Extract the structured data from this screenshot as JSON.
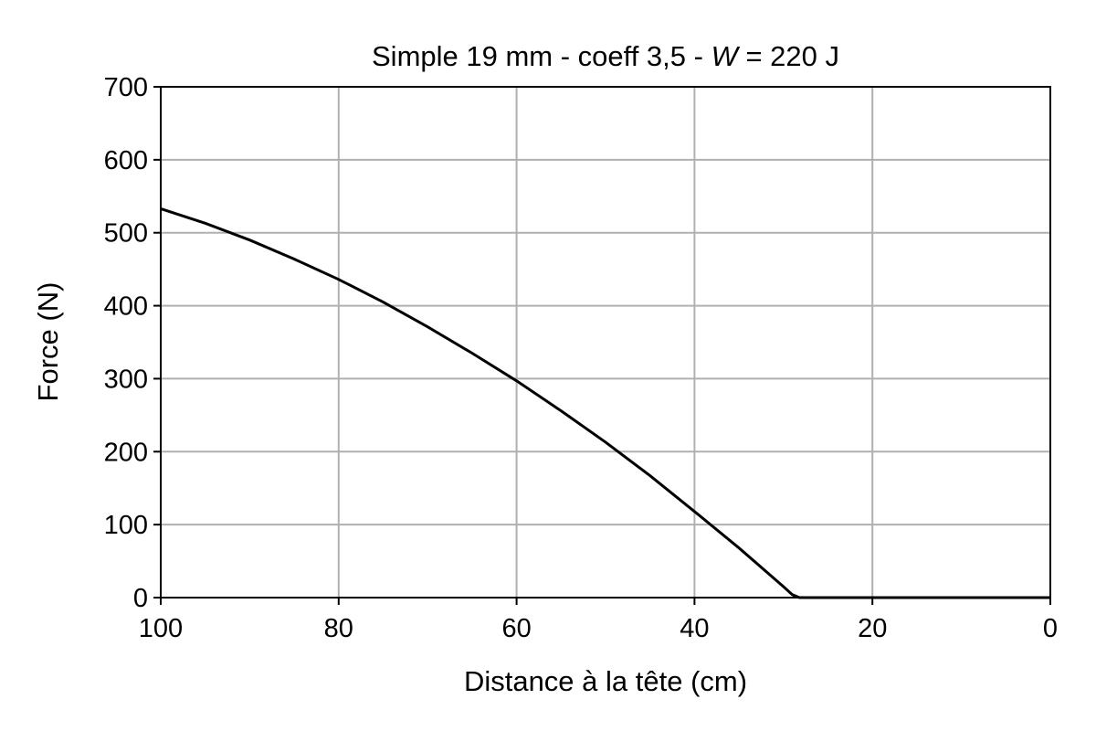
{
  "chart_data": {
    "type": "line",
    "title_parts": {
      "prefix": "Simple 19 mm - coeff 3,5 - ",
      "variable": "W",
      "suffix": " = 220 J"
    },
    "xlabel": "Distance à la tête (cm)",
    "ylabel": "Force (N)",
    "xlim": [
      100,
      0
    ],
    "ylim": [
      0,
      700
    ],
    "x_inverted": true,
    "grid": true,
    "x_ticks": [
      100,
      80,
      60,
      40,
      20,
      0
    ],
    "y_ticks": [
      0,
      100,
      200,
      300,
      400,
      500,
      600,
      700
    ],
    "series": [
      {
        "color": "#000000",
        "x": [
          100,
          95,
          90,
          85,
          80,
          75,
          70,
          65,
          60,
          55,
          50,
          45,
          40,
          35,
          30,
          29,
          28.2,
          25,
          20,
          15,
          10,
          5,
          0
        ],
        "y": [
          533,
          513,
          490,
          464,
          436,
          405,
          371,
          335,
          297,
          256,
          213,
          167,
          118,
          68,
          15,
          4,
          0,
          0,
          0,
          0,
          0,
          0,
          0
        ]
      }
    ]
  }
}
